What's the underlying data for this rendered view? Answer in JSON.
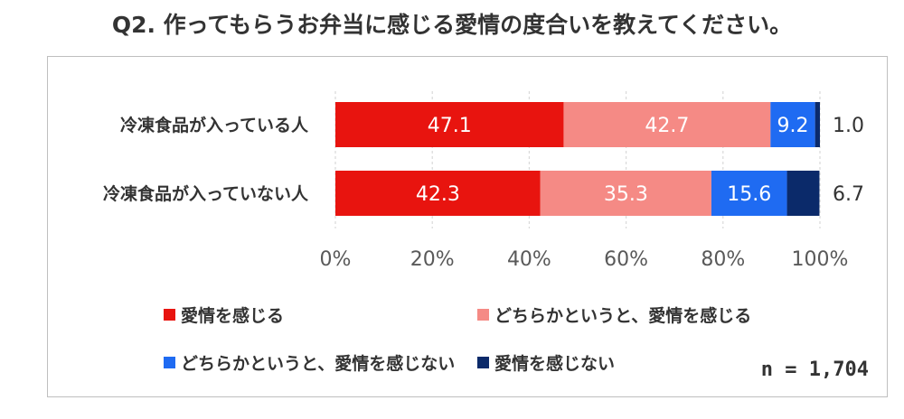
{
  "title": "Q2. 作ってもらうお弁当に感じる愛情の度合いを教えてください。",
  "n_label": "n = 1,704",
  "chart_data": {
    "type": "bar",
    "orientation": "horizontal",
    "stacked": true,
    "categories": [
      "冷凍食品が入っている人",
      "冷凍食品が入っていない人"
    ],
    "series": [
      {
        "name": "愛情を感じる",
        "values": [
          47.1,
          42.3
        ],
        "color": "#e8140f"
      },
      {
        "name": "どちらかというと、愛情を感じる",
        "values": [
          42.7,
          35.3
        ],
        "color": "#f58a85"
      },
      {
        "name": "どちらかというと、愛情を感じない",
        "values": [
          9.2,
          15.6
        ],
        "color": "#1f6bf2"
      },
      {
        "name": "愛情を感じない",
        "values": [
          1.0,
          6.7
        ],
        "color": "#0b2a6a"
      }
    ],
    "xlim": [
      0,
      100
    ],
    "xticks": [
      "0%",
      "20%",
      "40%",
      "60%",
      "80%",
      "100%"
    ],
    "grid": true,
    "legend_position": "bottom"
  }
}
